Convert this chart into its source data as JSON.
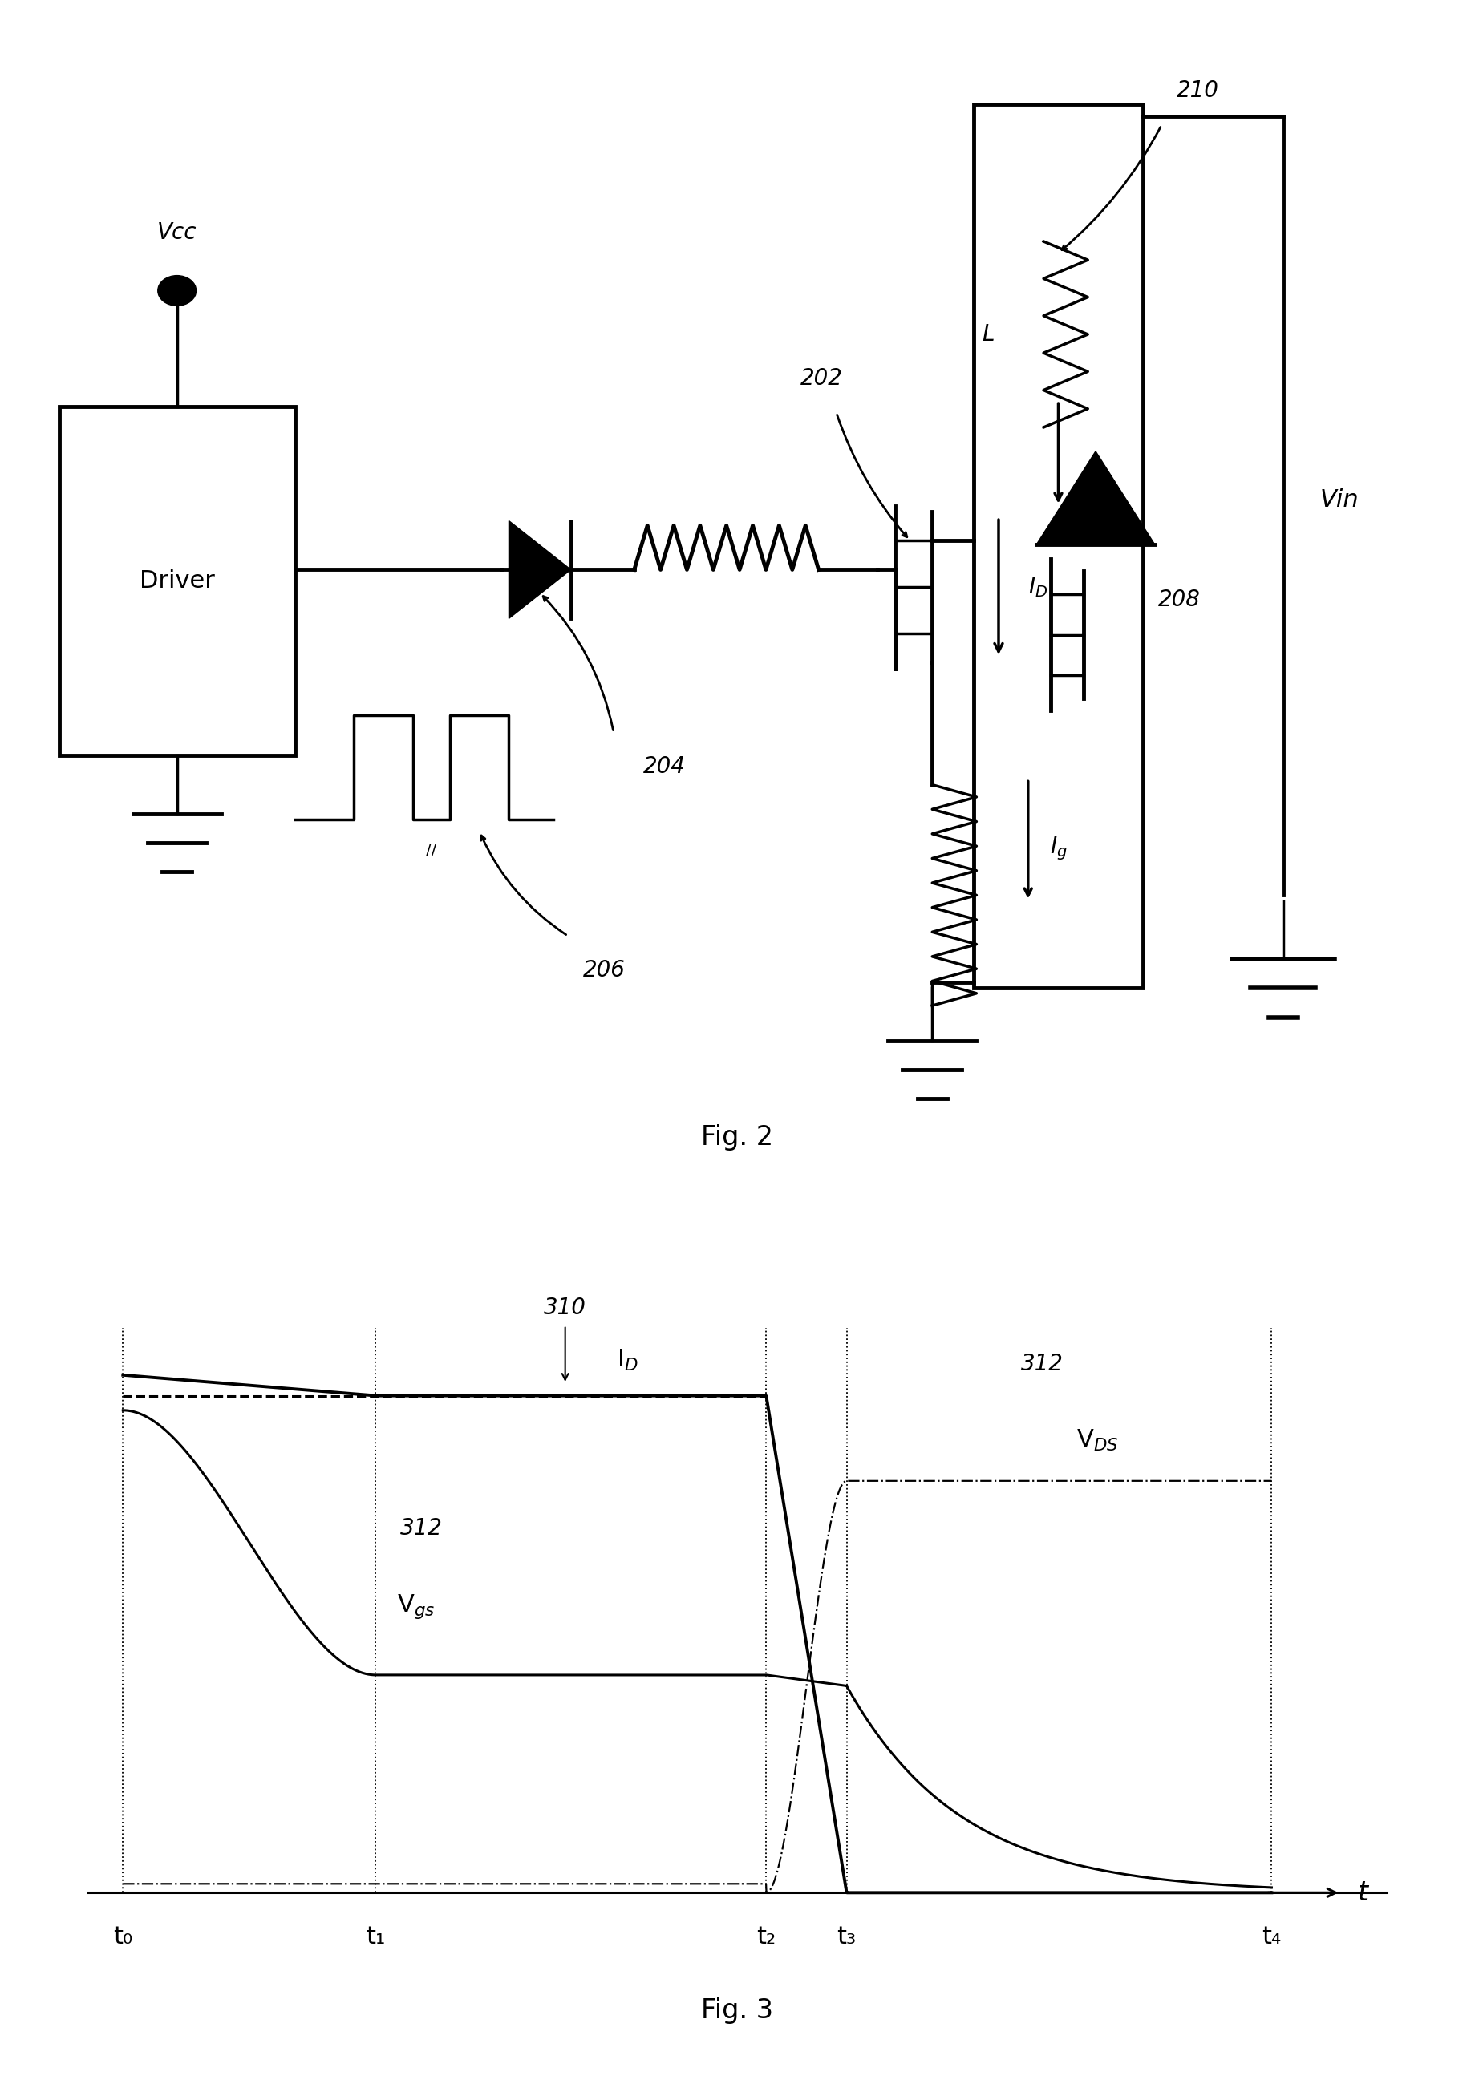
{
  "fig2_label": "Fig. 2",
  "fig3_label": "Fig. 3",
  "bg_color": "#ffffff",
  "line_color": "#000000",
  "component_labels": {
    "Vcc": "Vcc",
    "Driver": "Driver",
    "L_label": "L",
    "num_204": "204",
    "num_202": "202",
    "num_206": "206",
    "num_208": "208",
    "num_210": "210"
  },
  "fig3": {
    "t_labels": [
      "t₀",
      "t₁",
      "t₂",
      "t₃",
      "t₄"
    ],
    "t_values": [
      0.0,
      0.22,
      0.56,
      0.63,
      1.0
    ],
    "num_310": "310",
    "num_312a": "312",
    "num_312b": "312"
  }
}
